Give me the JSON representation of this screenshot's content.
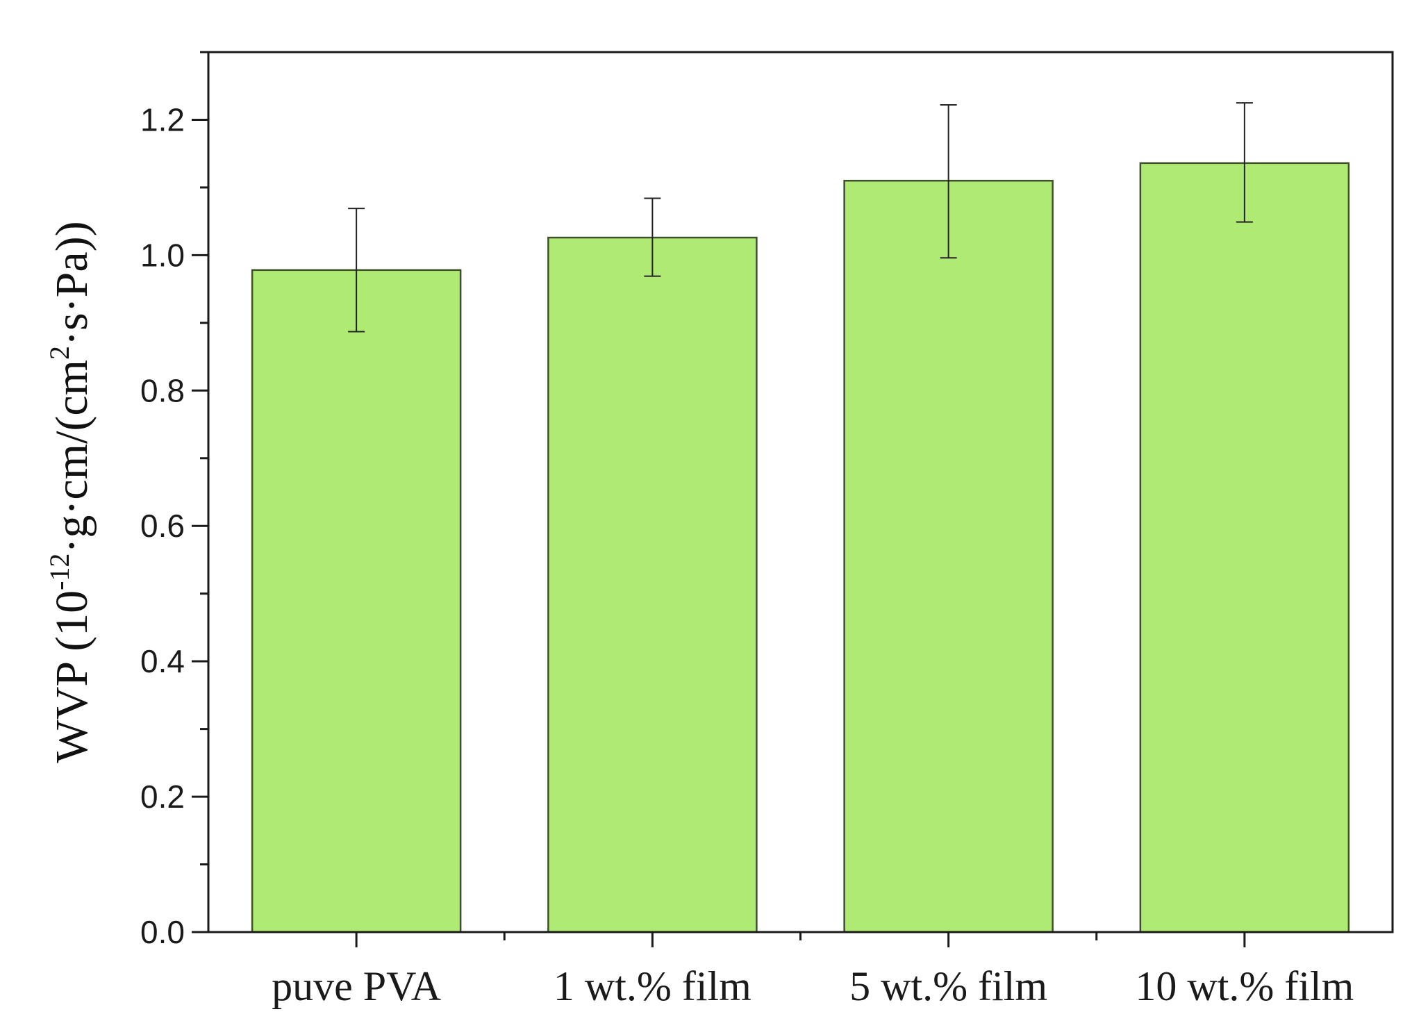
{
  "chart_data": {
    "type": "bar",
    "categories": [
      "puve PVA",
      "1 wt.% film",
      "5 wt.% film",
      "10 wt.% film"
    ],
    "values": [
      0.978,
      1.026,
      1.11,
      1.136
    ],
    "error_low": [
      0.887,
      0.969,
      0.996,
      1.049
    ],
    "error_high": [
      1.069,
      1.084,
      1.222,
      1.225
    ],
    "ylabel": {
      "prefix": "WVP (10",
      "exp1": "-12",
      "middle": "·g·cm/(cm",
      "exp2": "2",
      "suffix": "·s·Pa))"
    },
    "ylim": [
      0,
      1.3
    ],
    "yticks": [
      "0.0",
      "0.2",
      "0.4",
      "0.6",
      "0.8",
      "1.0",
      "1.2"
    ],
    "grid": false,
    "bar_color": "#aeea74",
    "bar_edge_color": "#3f4f2c",
    "axis_color": "#1a1a1a"
  }
}
